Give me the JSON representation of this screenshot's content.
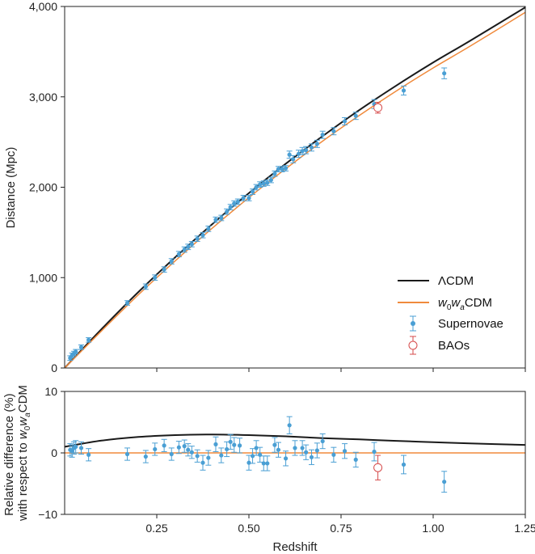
{
  "chart_data": [
    {
      "type": "line",
      "panel": "top",
      "xlabel": "",
      "ylabel": "Distance (Mpc)",
      "xlim": [
        0,
        1.25
      ],
      "ylim": [
        0,
        4000
      ],
      "yticks": [
        0,
        1000,
        2000,
        3000,
        4000
      ],
      "ytick_labels": [
        "0",
        "1,000",
        "2,000",
        "3,000",
        "4,000"
      ],
      "colors": {
        "lcdm": "#1a1a1a",
        "w0wa": "#f08a3c",
        "sn": "#4a9fd4",
        "bao": "#d64a4a"
      },
      "series": [
        {
          "name": "ΛCDM",
          "kind": "line",
          "x": [
            0,
            0.1,
            0.2,
            0.3,
            0.4,
            0.5,
            0.6,
            0.7,
            0.8,
            0.9,
            1.0,
            1.1,
            1.25
          ],
          "y": [
            0,
            430,
            840,
            1225,
            1590,
            1935,
            2260,
            2565,
            2855,
            3125,
            3380,
            3620,
            3990
          ]
        },
        {
          "name": "w0waCDM",
          "kind": "line",
          "x": [
            0,
            0.1,
            0.2,
            0.3,
            0.4,
            0.5,
            0.6,
            0.7,
            0.8,
            0.9,
            1.0,
            1.1,
            1.25
          ],
          "y": [
            0,
            410,
            810,
            1185,
            1545,
            1885,
            2205,
            2510,
            2795,
            3065,
            3320,
            3560,
            3935
          ]
        },
        {
          "name": "Supernovae",
          "kind": "errorbar",
          "points": [
            [
              0.015,
              110,
              25
            ],
            [
              0.02,
              140,
              25
            ],
            [
              0.025,
              160,
              25
            ],
            [
              0.03,
              180,
              25
            ],
            [
              0.045,
              230,
              25
            ],
            [
              0.065,
              310,
              25
            ],
            [
              0.17,
              720,
              25
            ],
            [
              0.22,
              900,
              30
            ],
            [
              0.245,
              1000,
              30
            ],
            [
              0.27,
              1090,
              30
            ],
            [
              0.29,
              1180,
              30
            ],
            [
              0.31,
              1260,
              30
            ],
            [
              0.325,
              1310,
              30
            ],
            [
              0.335,
              1340,
              30
            ],
            [
              0.345,
              1370,
              30
            ],
            [
              0.36,
              1430,
              30
            ],
            [
              0.375,
              1470,
              30
            ],
            [
              0.39,
              1540,
              30
            ],
            [
              0.41,
              1640,
              30
            ],
            [
              0.425,
              1660,
              30
            ],
            [
              0.44,
              1730,
              30
            ],
            [
              0.45,
              1780,
              30
            ],
            [
              0.46,
              1820,
              30
            ],
            [
              0.47,
              1840,
              30
            ],
            [
              0.485,
              1880,
              30
            ],
            [
              0.5,
              1880,
              30
            ],
            [
              0.51,
              1950,
              30
            ],
            [
              0.52,
              2000,
              30
            ],
            [
              0.53,
              2030,
              30
            ],
            [
              0.54,
              2040,
              30
            ],
            [
              0.55,
              2050,
              30
            ],
            [
              0.56,
              2080,
              30
            ],
            [
              0.57,
              2150,
              30
            ],
            [
              0.58,
              2200,
              30
            ],
            [
              0.59,
              2200,
              30
            ],
            [
              0.6,
              2210,
              30
            ],
            [
              0.61,
              2360,
              40
            ],
            [
              0.62,
              2310,
              40
            ],
            [
              0.635,
              2370,
              40
            ],
            [
              0.645,
              2400,
              40
            ],
            [
              0.655,
              2410,
              40
            ],
            [
              0.67,
              2440,
              40
            ],
            [
              0.685,
              2480,
              40
            ],
            [
              0.7,
              2580,
              40
            ],
            [
              0.73,
              2620,
              40
            ],
            [
              0.76,
              2730,
              40
            ],
            [
              0.79,
              2790,
              40
            ],
            [
              0.84,
              2920,
              50
            ],
            [
              0.92,
              3070,
              50
            ],
            [
              1.03,
              3260,
              60
            ]
          ]
        },
        {
          "name": "BAOs",
          "kind": "errorbar",
          "points": [
            [
              0.85,
              2880,
              60
            ]
          ]
        }
      ],
      "legend": {
        "position": "bottom-right",
        "entries": [
          "ΛCDM",
          "w0waCDM",
          "Supernovae",
          "BAOs"
        ]
      }
    },
    {
      "type": "line",
      "panel": "bottom",
      "xlabel": "Redshift",
      "ylabel": "Relative difference (%) with respect to w0waCDM",
      "xlim": [
        0,
        1.25
      ],
      "ylim": [
        -10,
        10
      ],
      "xticks": [
        0.25,
        0.5,
        0.75,
        1.0,
        1.25
      ],
      "xtick_labels": [
        "0.25",
        "0.50",
        "0.75",
        "1.00",
        "1.25"
      ],
      "yticks": [
        -10,
        0,
        10
      ],
      "ytick_labels": [
        "−10",
        "0",
        "10"
      ],
      "series": [
        {
          "name": "ΛCDM",
          "kind": "line",
          "x": [
            0,
            0.1,
            0.2,
            0.3,
            0.4,
            0.5,
            0.6,
            0.7,
            0.8,
            0.9,
            1.0,
            1.1,
            1.25
          ],
          "y": [
            1.0,
            2.0,
            2.6,
            2.9,
            3.0,
            2.9,
            2.7,
            2.4,
            2.2,
            1.95,
            1.75,
            1.55,
            1.3
          ]
        },
        {
          "name": "w0waCDM",
          "kind": "line",
          "x": [
            0,
            1.25
          ],
          "y": [
            0,
            0
          ]
        },
        {
          "name": "Supernovae",
          "kind": "errorbar",
          "points": [
            [
              0.015,
              0.5,
              1.0
            ],
            [
              0.02,
              0.3,
              1.0
            ],
            [
              0.025,
              0.8,
              1.0
            ],
            [
              0.03,
              1.0,
              1.0
            ],
            [
              0.045,
              0.8,
              1.0
            ],
            [
              0.065,
              -0.3,
              1.0
            ],
            [
              0.17,
              -0.2,
              1.0
            ],
            [
              0.22,
              -0.6,
              1.0
            ],
            [
              0.245,
              0.6,
              1.0
            ],
            [
              0.27,
              1.2,
              1.0
            ],
            [
              0.29,
              -0.2,
              1.0
            ],
            [
              0.31,
              0.9,
              1.0
            ],
            [
              0.325,
              1.1,
              1.0
            ],
            [
              0.335,
              0.5,
              1.0
            ],
            [
              0.345,
              0.1,
              1.0
            ],
            [
              0.36,
              -0.5,
              1.0
            ],
            [
              0.375,
              -1.6,
              1.2
            ],
            [
              0.39,
              -0.8,
              1.2
            ],
            [
              0.41,
              1.4,
              1.2
            ],
            [
              0.425,
              -0.4,
              1.2
            ],
            [
              0.44,
              0.6,
              1.2
            ],
            [
              0.45,
              1.8,
              1.2
            ],
            [
              0.46,
              1.3,
              1.2
            ],
            [
              0.475,
              1.2,
              1.2
            ],
            [
              0.5,
              -1.6,
              1.2
            ],
            [
              0.51,
              -0.5,
              1.2
            ],
            [
              0.52,
              0.8,
              1.2
            ],
            [
              0.53,
              -0.3,
              1.2
            ],
            [
              0.54,
              -1.7,
              1.2
            ],
            [
              0.55,
              -1.7,
              1.2
            ],
            [
              0.57,
              1.3,
              1.2
            ],
            [
              0.58,
              0.5,
              1.2
            ],
            [
              0.6,
              -0.9,
              1.2
            ],
            [
              0.61,
              4.5,
              1.4
            ],
            [
              0.625,
              0.8,
              1.2
            ],
            [
              0.645,
              0.8,
              1.2
            ],
            [
              0.655,
              0.1,
              1.2
            ],
            [
              0.67,
              -0.7,
              1.2
            ],
            [
              0.685,
              0.4,
              1.2
            ],
            [
              0.7,
              1.9,
              1.2
            ],
            [
              0.73,
              -0.3,
              1.2
            ],
            [
              0.76,
              0.3,
              1.2
            ],
            [
              0.79,
              -1.1,
              1.2
            ],
            [
              0.84,
              0.2,
              1.5
            ],
            [
              0.92,
              -1.9,
              1.5
            ],
            [
              1.03,
              -4.7,
              1.7
            ]
          ]
        },
        {
          "name": "BAOs",
          "kind": "errorbar",
          "points": [
            [
              0.85,
              -2.4,
              2.0
            ]
          ]
        }
      ]
    }
  ]
}
